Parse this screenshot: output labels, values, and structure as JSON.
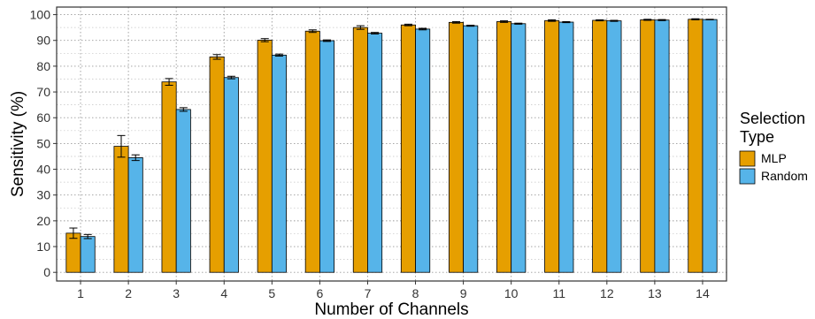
{
  "chart_data": {
    "type": "bar",
    "title": "",
    "xlabel": "Number of Channels",
    "ylabel": "Sensitivity (%)",
    "categories": [
      "1",
      "2",
      "3",
      "4",
      "5",
      "6",
      "7",
      "8",
      "9",
      "10",
      "11",
      "12",
      "13",
      "14"
    ],
    "ylim": [
      0,
      100
    ],
    "yticks": [
      0,
      10,
      20,
      30,
      40,
      50,
      60,
      70,
      80,
      90,
      100
    ],
    "grid": true,
    "legend": {
      "title_lines": [
        "Selection",
        "Type"
      ],
      "placement": "right"
    },
    "series": [
      {
        "name": "MLP",
        "color": "#E69F00",
        "values": [
          15.2,
          48.9,
          73.9,
          83.6,
          90.1,
          93.6,
          95.0,
          96.0,
          97.0,
          97.3,
          97.7,
          97.8,
          98.0,
          98.2
        ],
        "errors": [
          2.0,
          4.2,
          1.3,
          0.9,
          0.6,
          0.5,
          0.7,
          0.3,
          0.3,
          0.3,
          0.3,
          0.2,
          0.2,
          0.2
        ]
      },
      {
        "name": "Random",
        "color": "#56B4E9",
        "values": [
          13.9,
          44.5,
          63.2,
          75.6,
          84.3,
          89.9,
          92.8,
          94.4,
          95.7,
          96.5,
          97.1,
          97.6,
          97.9,
          98.1
        ],
        "errors": [
          0.8,
          1.1,
          0.7,
          0.5,
          0.4,
          0.3,
          0.3,
          0.3,
          0.2,
          0.2,
          0.2,
          0.2,
          0.2,
          0.1
        ]
      }
    ]
  }
}
